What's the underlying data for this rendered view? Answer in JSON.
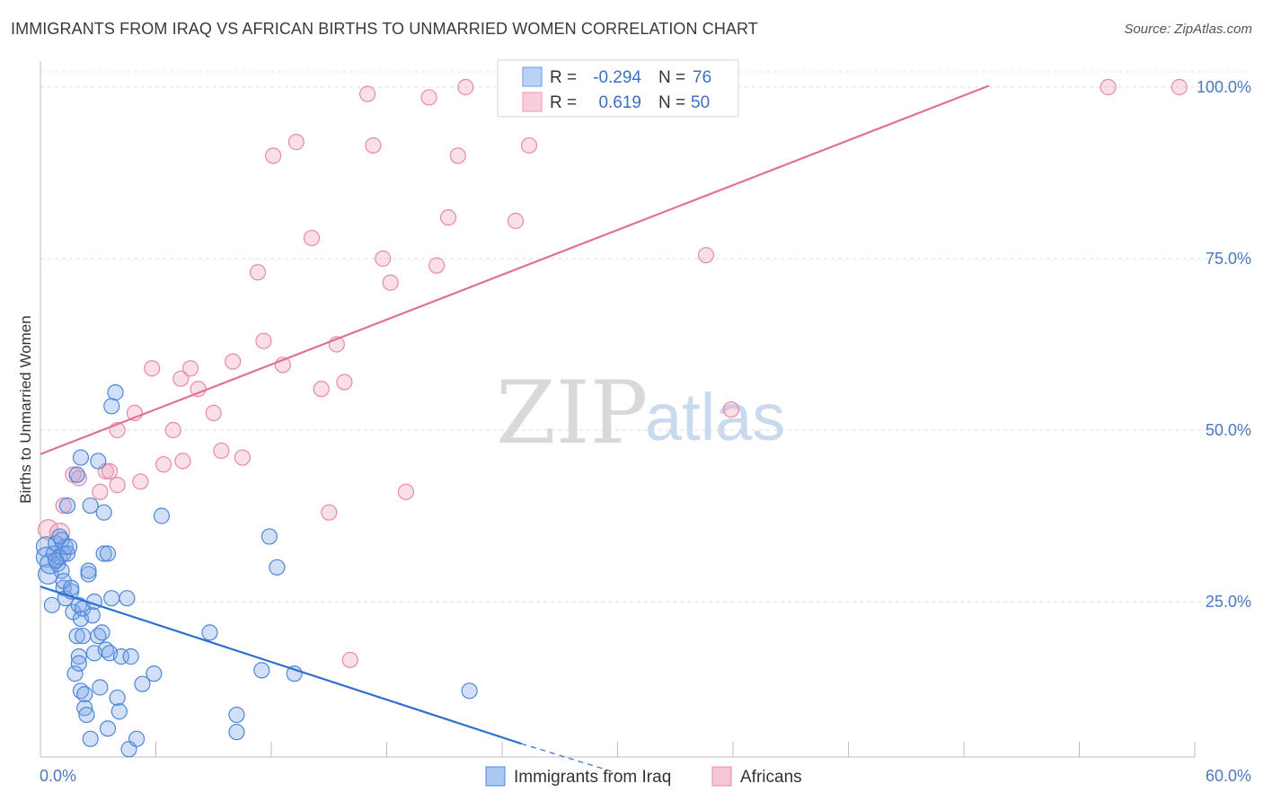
{
  "title": "IMMIGRANTS FROM IRAQ VS AFRICAN BIRTHS TO UNMARRIED WOMEN CORRELATION CHART",
  "source": "Source: ZipAtlas.com",
  "watermark": {
    "zip": "ZIP",
    "atlas": "atlas"
  },
  "legend": {
    "rows": [
      {
        "r_label": "R =",
        "r_value": "-0.294",
        "n_label": "N =",
        "n_value": "76",
        "color": "#7aa6e8"
      },
      {
        "r_label": "R =",
        "r_value": "0.619",
        "n_label": "N =",
        "n_value": "50",
        "color": "#f0a3bd"
      }
    ]
  },
  "chart_data": {
    "type": "scatter",
    "title": "IMMIGRANTS FROM IRAQ VS AFRICAN BIRTHS TO UNMARRIED WOMEN CORRELATION CHART",
    "xlabel": "",
    "ylabel": "Births to Unmarried Women",
    "xlim": [
      0,
      60
    ],
    "ylim": [
      0,
      100
    ],
    "x_tick_labels": [
      "0.0%",
      "60.0%"
    ],
    "y_ticks": [
      25,
      50,
      75,
      100
    ],
    "y_tick_labels": [
      "25.0%",
      "50.0%",
      "75.0%",
      "100.0%"
    ],
    "grid": true,
    "legend_position": "top-center",
    "series": [
      {
        "name": "Immigrants from Iraq",
        "color": "#7aa6e8",
        "stroke": "#4f86d8",
        "trend": {
          "x": [
            0,
            25
          ],
          "y": [
            27.2,
            4.3
          ],
          "dashed_to": [
            30,
            0
          ]
        },
        "points": [
          [
            0.3,
            33
          ],
          [
            0.3,
            31.5
          ],
          [
            0.4,
            29
          ],
          [
            0.5,
            30.5
          ],
          [
            0.6,
            24.5
          ],
          [
            0.7,
            32
          ],
          [
            0.8,
            33.5
          ],
          [
            0.9,
            30.5
          ],
          [
            1.0,
            31.5
          ],
          [
            1.1,
            34
          ],
          [
            1.1,
            29.5
          ],
          [
            1.2,
            32
          ],
          [
            1.3,
            33
          ],
          [
            1.2,
            27
          ],
          [
            1.4,
            39
          ],
          [
            1.4,
            32
          ],
          [
            1.2,
            28
          ],
          [
            1.3,
            25.5
          ],
          [
            1.5,
            33
          ],
          [
            1.6,
            26.5
          ],
          [
            1.6,
            27
          ],
          [
            1.7,
            23.5
          ],
          [
            1.8,
            14.5
          ],
          [
            1.9,
            20
          ],
          [
            1.9,
            43.5
          ],
          [
            2.0,
            17
          ],
          [
            2.0,
            16
          ],
          [
            2.0,
            24.5
          ],
          [
            2.1,
            22.5
          ],
          [
            2.1,
            46
          ],
          [
            2.2,
            20
          ],
          [
            2.2,
            24
          ],
          [
            2.1,
            12
          ],
          [
            2.3,
            11.5
          ],
          [
            2.3,
            9.5
          ],
          [
            2.4,
            8.5
          ],
          [
            2.5,
            29
          ],
          [
            2.5,
            29.5
          ],
          [
            2.6,
            5
          ],
          [
            2.7,
            23
          ],
          [
            2.6,
            39
          ],
          [
            2.8,
            17.5
          ],
          [
            2.8,
            25
          ],
          [
            3.0,
            45.5
          ],
          [
            3.0,
            20
          ],
          [
            3.1,
            12.5
          ],
          [
            3.2,
            20.5
          ],
          [
            3.3,
            38
          ],
          [
            3.3,
            32
          ],
          [
            3.4,
            18
          ],
          [
            3.5,
            6.5
          ],
          [
            3.5,
            32
          ],
          [
            3.6,
            17.5
          ],
          [
            3.7,
            53.5
          ],
          [
            3.7,
            25.5
          ],
          [
            3.9,
            55.5
          ],
          [
            4.0,
            11
          ],
          [
            4.1,
            9
          ],
          [
            4.2,
            17
          ],
          [
            4.5,
            25.5
          ],
          [
            4.6,
            3.5
          ],
          [
            4.7,
            17
          ],
          [
            5.0,
            5
          ],
          [
            5.3,
            13
          ],
          [
            5.9,
            14.5
          ],
          [
            6.3,
            37.5
          ],
          [
            8.8,
            20.5
          ],
          [
            10.2,
            8.5
          ],
          [
            10.2,
            6
          ],
          [
            11.5,
            15
          ],
          [
            11.9,
            34.5
          ],
          [
            12.3,
            30
          ],
          [
            13.2,
            14.5
          ],
          [
            22.3,
            12
          ],
          [
            1.0,
            34.5
          ],
          [
            0.8,
            31
          ]
        ]
      },
      {
        "name": "Africans",
        "color": "#f0a3bd",
        "stroke": "#e889aa",
        "trend": {
          "x": [
            0,
            49.3
          ],
          "y": [
            46.5,
            100.2
          ]
        },
        "points": [
          [
            0.4,
            35.5
          ],
          [
            1.0,
            35
          ],
          [
            1.2,
            39
          ],
          [
            1.7,
            43.5
          ],
          [
            2.0,
            43
          ],
          [
            3.1,
            41
          ],
          [
            3.4,
            44
          ],
          [
            3.6,
            44
          ],
          [
            4.0,
            42
          ],
          [
            4.0,
            50
          ],
          [
            4.9,
            52.5
          ],
          [
            5.2,
            42.5
          ],
          [
            5.8,
            59
          ],
          [
            6.4,
            45
          ],
          [
            6.9,
            50
          ],
          [
            7.3,
            57.5
          ],
          [
            7.4,
            45.5
          ],
          [
            7.8,
            59
          ],
          [
            8.2,
            56
          ],
          [
            9.0,
            52.5
          ],
          [
            9.4,
            47
          ],
          [
            10.0,
            60
          ],
          [
            10.5,
            46
          ],
          [
            11.3,
            73
          ],
          [
            11.6,
            63
          ],
          [
            12.1,
            90
          ],
          [
            12.6,
            59.5
          ],
          [
            13.3,
            92
          ],
          [
            14.1,
            78
          ],
          [
            14.6,
            56
          ],
          [
            15.0,
            38
          ],
          [
            15.4,
            62.5
          ],
          [
            15.8,
            57
          ],
          [
            16.1,
            16.5
          ],
          [
            17.0,
            99
          ],
          [
            17.3,
            91.5
          ],
          [
            17.8,
            75
          ],
          [
            18.2,
            71.5
          ],
          [
            19.0,
            41
          ],
          [
            20.2,
            98.5
          ],
          [
            20.6,
            74
          ],
          [
            21.2,
            81
          ],
          [
            21.7,
            90
          ],
          [
            22.1,
            100
          ],
          [
            24.7,
            80.5
          ],
          [
            25.4,
            91.5
          ],
          [
            34.6,
            75.5
          ],
          [
            35.9,
            53
          ],
          [
            55.5,
            100
          ],
          [
            59.2,
            100
          ]
        ]
      }
    ]
  },
  "bottom_legend": [
    {
      "label": "Immigrants from Iraq",
      "color": "#aac8f2",
      "stroke": "#4f86d8"
    },
    {
      "label": "Africans",
      "color": "#f7c6d6",
      "stroke": "#e889aa"
    }
  ]
}
